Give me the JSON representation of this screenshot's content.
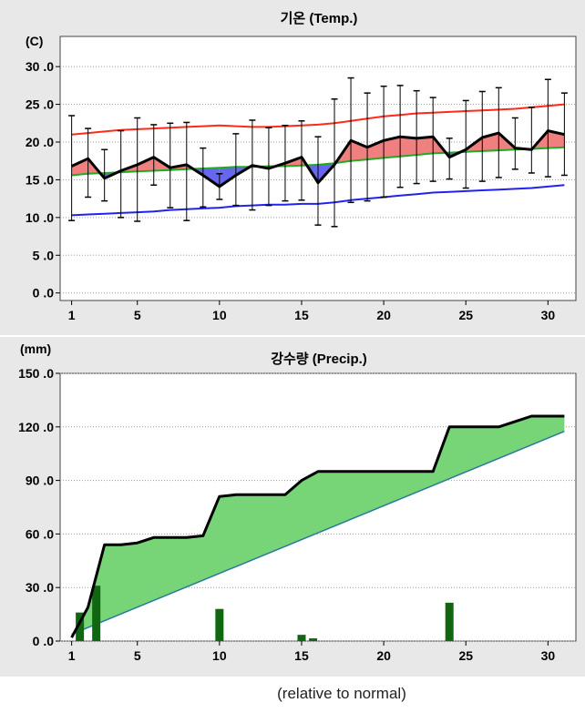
{
  "footnote": "(relative to normal)",
  "colors": {
    "panel_bg": "#e8e8e8",
    "plot_bg": "#ffffff",
    "grid": "#9a9a9a",
    "max_normal": "#ff2a1a",
    "min_normal": "#2222ee",
    "mean_normal": "#22aa22",
    "mean_actual": "#000000",
    "above_fill": "#f08080",
    "below_fill": "#6666ee",
    "precip_fill": "#77d477",
    "precip_normal": "#2a7a9a",
    "precip_bar": "#116611"
  },
  "chart_data": [
    {
      "type": "line",
      "title": "기온 (Temp.)",
      "ylabel": "(C)",
      "xlim": [
        0.3,
        31.7
      ],
      "ylim": [
        -1,
        34
      ],
      "x_ticks": [
        1,
        5,
        10,
        15,
        20,
        25,
        30
      ],
      "y_ticks": [
        "0 .0",
        "5 .0",
        "10 .0",
        "15 .0",
        "20 .0",
        "25 .0",
        "30 .0"
      ],
      "y_tick_values": [
        0,
        5,
        10,
        15,
        20,
        25,
        30
      ],
      "grid": "horizontal dotted",
      "days": [
        1,
        2,
        3,
        4,
        5,
        6,
        7,
        8,
        9,
        10,
        11,
        12,
        13,
        14,
        15,
        16,
        17,
        18,
        19,
        20,
        21,
        22,
        23,
        24,
        25,
        26,
        27,
        28,
        29,
        30,
        31
      ],
      "series": [
        {
          "role": "mean_actual",
          "values": [
            16.8,
            17.8,
            15.2,
            16.2,
            17.0,
            18.0,
            16.6,
            17.0,
            15.6,
            14.1,
            15.6,
            16.9,
            16.5,
            17.2,
            18.0,
            14.6,
            17.0,
            20.2,
            19.3,
            20.2,
            20.7,
            20.5,
            20.7,
            18.0,
            19.0,
            20.6,
            21.2,
            19.2,
            19.0,
            21.5,
            21.0
          ]
        },
        {
          "role": "max_normal",
          "values": [
            21.0,
            21.2,
            21.4,
            21.6,
            21.7,
            21.8,
            21.9,
            22.0,
            22.1,
            22.2,
            22.1,
            22.0,
            22.0,
            22.1,
            22.2,
            22.3,
            22.5,
            22.8,
            23.1,
            23.4,
            23.6,
            23.8,
            23.9,
            24.0,
            24.1,
            24.2,
            24.3,
            24.4,
            24.6,
            24.8,
            25.0
          ]
        },
        {
          "role": "mean_normal",
          "values": [
            15.6,
            15.8,
            15.9,
            16.0,
            16.1,
            16.2,
            16.3,
            16.4,
            16.5,
            16.6,
            16.7,
            16.7,
            16.8,
            16.8,
            16.9,
            17.0,
            17.2,
            17.5,
            17.7,
            17.9,
            18.1,
            18.3,
            18.5,
            18.6,
            18.7,
            18.8,
            18.9,
            19.0,
            19.1,
            19.2,
            19.3
          ]
        },
        {
          "role": "min_normal",
          "values": [
            10.3,
            10.4,
            10.5,
            10.6,
            10.7,
            10.8,
            11.0,
            11.1,
            11.2,
            11.3,
            11.5,
            11.6,
            11.7,
            11.7,
            11.8,
            11.8,
            12.0,
            12.3,
            12.5,
            12.7,
            12.9,
            13.1,
            13.3,
            13.4,
            13.5,
            13.6,
            13.7,
            13.8,
            13.9,
            14.1,
            14.3
          ]
        },
        {
          "role": "daily_max",
          "values": [
            23.5,
            21.8,
            19.0,
            21.5,
            23.2,
            22.3,
            22.5,
            22.6,
            19.2,
            15.8,
            21.1,
            22.9,
            21.9,
            22.2,
            22.8,
            20.7,
            25.7,
            28.5,
            26.5,
            27.4,
            27.5,
            26.8,
            25.9,
            20.5,
            25.5,
            26.7,
            27.2,
            23.2,
            24.6,
            28.3,
            26.5
          ]
        },
        {
          "role": "daily_min",
          "values": [
            9.6,
            12.7,
            12.2,
            10.0,
            9.5,
            14.3,
            11.3,
            9.6,
            11.4,
            12.4,
            11.6,
            11.0,
            11.6,
            12.2,
            12.3,
            9.0,
            8.8,
            12.0,
            12.2,
            12.7,
            14.0,
            14.5,
            14.8,
            15.1,
            13.9,
            14.8,
            15.3,
            16.4,
            15.9,
            15.4,
            15.6
          ]
        }
      ]
    },
    {
      "type": "area",
      "title": "강수량 (Precip.)",
      "ylabel": "(mm)",
      "xlim": [
        0.3,
        31.7
      ],
      "ylim": [
        0,
        150
      ],
      "x_ticks": [
        1,
        5,
        10,
        15,
        20,
        25,
        30
      ],
      "y_ticks": [
        "0 .0",
        "30 .0",
        "60 .0",
        "90 .0",
        "120 .0",
        "150 .0"
      ],
      "y_tick_values": [
        0,
        30,
        60,
        90,
        120,
        150
      ],
      "grid": "horizontal dotted",
      "days": [
        1,
        2,
        3,
        4,
        5,
        6,
        7,
        8,
        9,
        10,
        11,
        12,
        13,
        14,
        15,
        16,
        17,
        18,
        19,
        20,
        21,
        22,
        23,
        24,
        25,
        26,
        27,
        28,
        29,
        30,
        31
      ],
      "cumulative_actual": [
        2,
        19,
        54,
        54,
        55,
        58,
        58,
        58,
        59,
        81,
        82,
        82,
        82,
        82,
        90,
        95,
        95,
        95,
        95,
        95,
        95,
        95,
        95,
        120,
        120,
        120,
        120,
        123,
        126,
        126,
        126
      ],
      "cumulative_normal_start": 3.8,
      "cumulative_normal_end": 117.5,
      "daily_precip": [
        {
          "day": 1.5,
          "value": 16
        },
        {
          "day": 2.5,
          "value": 31
        },
        {
          "day": 10,
          "value": 18
        },
        {
          "day": 15,
          "value": 3.5
        },
        {
          "day": 15.7,
          "value": 1.5
        },
        {
          "day": 24,
          "value": 21.5
        }
      ]
    }
  ]
}
